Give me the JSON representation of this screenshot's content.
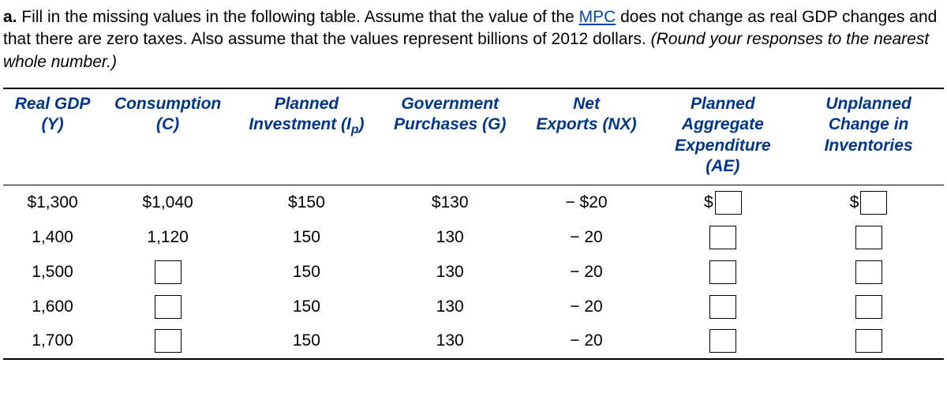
{
  "prompt": {
    "lead": "a.",
    "text_before_link": " Fill in the missing values in the following table. Assume that the value of the ",
    "link_text": "MPC",
    "text_after_link": " does not change as real GDP changes and that there are zero taxes. Also assume that the values represent billions of 2012 dollars. ",
    "italic_tail": "(Round your responses to the nearest whole number.)"
  },
  "table": {
    "header_color": "#00378a",
    "columns": [
      {
        "line1": "Real GDP",
        "line2": "(Y)"
      },
      {
        "line1": "Consumption",
        "line2": "(C)"
      },
      {
        "line1": "Planned",
        "line2_html": "Investment (I<sub>p</sub>)"
      },
      {
        "line1": "Government",
        "line2": "Purchases (G)"
      },
      {
        "line1": "Net",
        "line2": "Exports (NX)"
      },
      {
        "line1": "Planned",
        "line2": "Aggregate",
        "line3": "Expenditure",
        "line4": "(AE)"
      },
      {
        "line1": "Unplanned",
        "line2": "Change in",
        "line3": "Inventories"
      }
    ],
    "rows": [
      {
        "Y": "$1,300",
        "C": {
          "type": "text",
          "value": "$1,040"
        },
        "Ip": "$150",
        "G": "$130",
        "NX": "− $20",
        "AE": {
          "type": "input",
          "prefix": "$"
        },
        "Inv": {
          "type": "input",
          "prefix": "$"
        }
      },
      {
        "Y": "1,400",
        "C": {
          "type": "text",
          "value": "1,120"
        },
        "Ip": "150",
        "G": "130",
        "NX": "− 20",
        "AE": {
          "type": "input"
        },
        "Inv": {
          "type": "input"
        }
      },
      {
        "Y": "1,500",
        "C": {
          "type": "input"
        },
        "Ip": "150",
        "G": "130",
        "NX": "− 20",
        "AE": {
          "type": "input"
        },
        "Inv": {
          "type": "input"
        }
      },
      {
        "Y": "1,600",
        "C": {
          "type": "input"
        },
        "Ip": "150",
        "G": "130",
        "NX": "− 20",
        "AE": {
          "type": "input"
        },
        "Inv": {
          "type": "input"
        }
      },
      {
        "Y": "1,700",
        "C": {
          "type": "input"
        },
        "Ip": "150",
        "G": "130",
        "NX": "− 20",
        "AE": {
          "type": "input"
        },
        "Inv": {
          "type": "input"
        }
      }
    ]
  }
}
